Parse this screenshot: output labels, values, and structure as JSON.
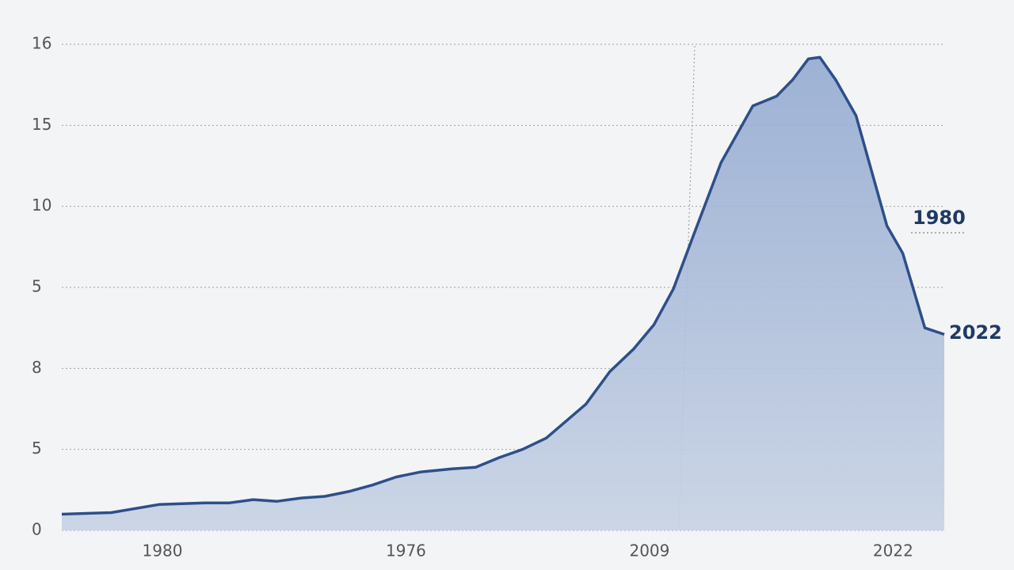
{
  "chart_data": {
    "type": "area",
    "x": [
      0,
      5.6,
      11,
      16.3,
      19,
      21.7,
      24.4,
      27.1,
      29.8,
      32.5,
      35.2,
      37.9,
      40.6,
      44.2,
      46.9,
      49.6,
      52.2,
      54.9,
      59.4,
      62.1,
      64.8,
      67.1,
      69.3,
      71.5,
      74.7,
      78.3,
      81,
      82.8,
      84.6,
      85.9,
      87.7,
      90,
      93.5,
      95.3,
      97.8,
      100
    ],
    "values": [
      1.0,
      1.1,
      1.6,
      1.7,
      1.7,
      1.9,
      1.8,
      2.0,
      2.1,
      2.4,
      2.8,
      3.3,
      3.6,
      3.8,
      3.9,
      4.5,
      5.0,
      5.7,
      7.8,
      9.8,
      11.2,
      12.7,
      14.9,
      18.1,
      22.7,
      26.2,
      26.8,
      27.8,
      29.1,
      29.2,
      27.8,
      25.6,
      18.8,
      17.1,
      12.5,
      12.1
    ],
    "color": "#2d4f8a",
    "xlim": [
      0,
      100
    ],
    "xticks": [
      {
        "value": 11.4,
        "label": "1980"
      },
      {
        "value": 39,
        "label": "1976"
      },
      {
        "value": 66.6,
        "label": "2009"
      },
      {
        "value": 94.2,
        "label": "2022"
      }
    ],
    "ylim": [
      0,
      30
    ],
    "yticks": [
      0,
      5,
      {
        "value": 10,
        "label": "8"
      },
      {
        "value": 15,
        "label": "5"
      },
      {
        "value": 20,
        "label": "10"
      },
      {
        "value": 25,
        "label": "15"
      },
      {
        "value": 30,
        "label": "16"
      }
    ],
    "grid": true,
    "annotations": [
      "1980",
      "2022"
    ]
  }
}
